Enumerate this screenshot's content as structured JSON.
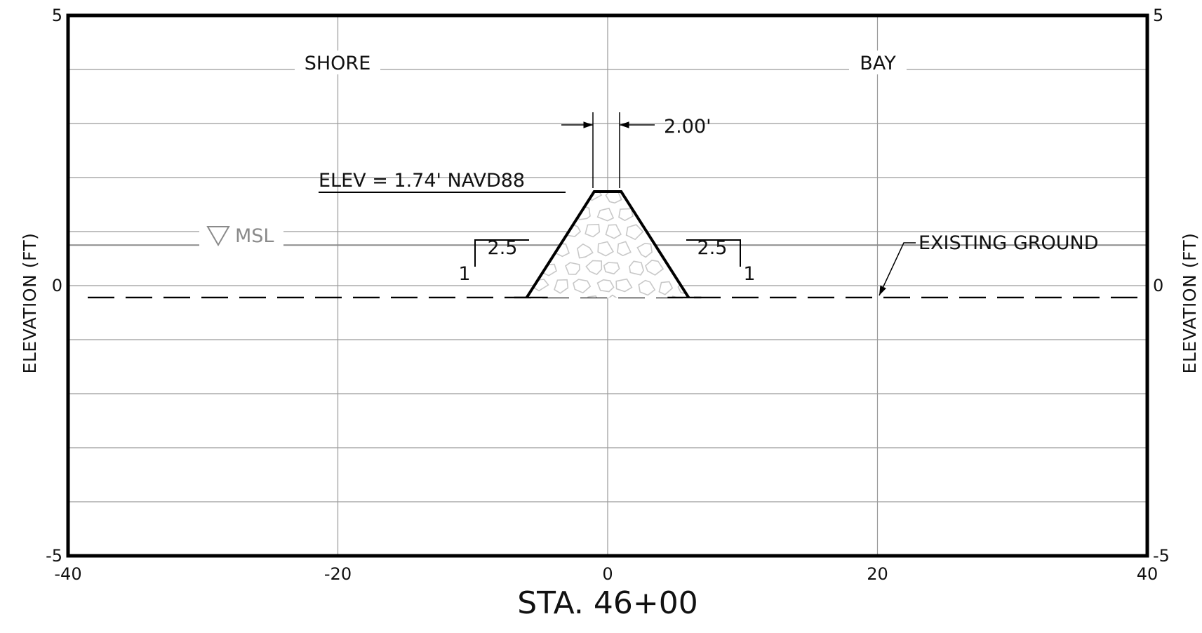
{
  "chart_data": {
    "type": "cross-section",
    "x_axis": {
      "range": [
        -40,
        40
      ],
      "ticks": [
        "-40",
        "-20",
        "0",
        "20",
        "40"
      ],
      "label": "STA. 46+00"
    },
    "y_axis": {
      "range": [
        -5,
        5
      ],
      "ticks": [
        "5",
        "0",
        "-5"
      ],
      "label": "ELEVATION (FT)",
      "label_right": "ELEVATION (FT)"
    },
    "grid": true,
    "horizontal_gridlines": [
      4,
      3,
      2,
      1,
      0,
      -1,
      -2,
      -3,
      -4
    ],
    "vertical_gridlines": [
      -20,
      0,
      20
    ],
    "msl_elevation": 0.75,
    "existing_ground_elevation": -0.22,
    "berm": {
      "crest_elevation": 1.74,
      "crest_width": 2.0,
      "crest_x": [
        -1.0,
        1.0
      ],
      "toe_x": [
        -6.0,
        6.0
      ],
      "slope_h": 2.5,
      "slope_v": 1
    }
  },
  "labels": {
    "shore": "SHORE",
    "bay": "BAY",
    "crest_width": "2.00'",
    "crest_elev": "ELEV = 1.74' NAVD88",
    "msl": "MSL",
    "existing_ground": "EXISTING GROUND",
    "slope_left_h": "2.5",
    "slope_left_v": "1",
    "slope_right_h": "2.5",
    "slope_right_v": "1"
  },
  "colors": {
    "frame": "#000000",
    "grid": "#9a9a9a",
    "msl": "#8a8a8a",
    "rock_outline": "#c8c8c8"
  },
  "icons": {
    "msl_marker": "inverted-triangle-icon"
  }
}
